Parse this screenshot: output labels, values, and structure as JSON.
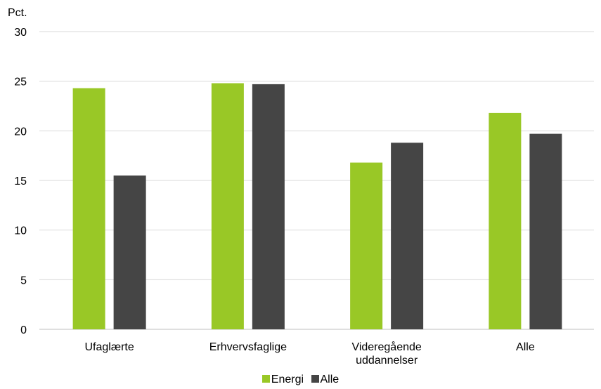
{
  "chart_data": {
    "type": "bar",
    "unit_label": "Pct.",
    "categories": [
      [
        "Ufaglærte"
      ],
      [
        "Erhvervsfaglige"
      ],
      [
        "Videregående",
        "uddannelser"
      ],
      [
        "Alle"
      ]
    ],
    "series": [
      {
        "name": "Energi",
        "color": "#99c826",
        "values": [
          24.3,
          24.8,
          16.8,
          21.8
        ]
      },
      {
        "name": "Alle",
        "color": "#454545",
        "values": [
          15.5,
          24.7,
          18.8,
          19.7
        ]
      }
    ],
    "ylim": [
      0,
      30
    ],
    "yticks": [
      "0",
      "5",
      "10",
      "15",
      "20",
      "25",
      "30"
    ],
    "grid": true,
    "legend_position": "bottom",
    "xlabel": "",
    "ylabel": "",
    "title": ""
  }
}
